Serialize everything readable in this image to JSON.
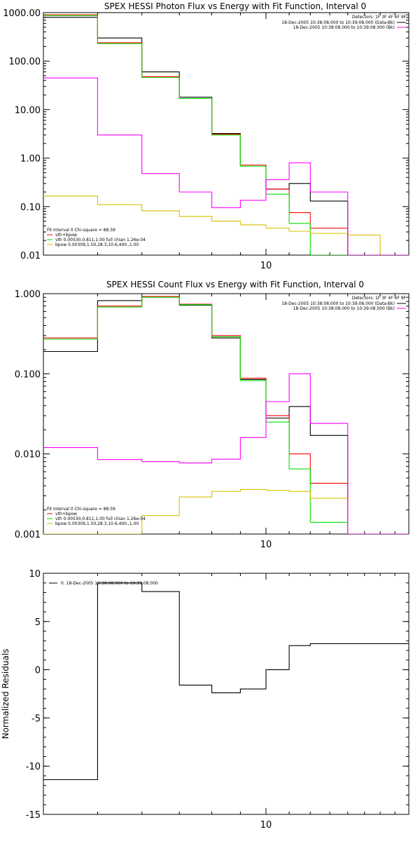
{
  "colors": {
    "data": "#000000",
    "total_fit": "#ff0000",
    "vth": "#00e000",
    "bpow": "#d8c000",
    "background": "#ff00ff"
  },
  "chart_data": [
    {
      "type": "line",
      "step": true,
      "title": "SPEX HESSI Photon Flux vs Energy with Fit Function, Interval 0",
      "xlabel": "",
      "ylabel": "",
      "x_scale": "log",
      "y_scale": "log",
      "xlim": [
        4,
        18
      ],
      "ylim": [
        0.01,
        1000
      ],
      "x_ticks": [
        {
          "value": 10,
          "label": "10"
        }
      ],
      "y_ticks": [
        {
          "value": 1000,
          "label": "1000.00"
        },
        {
          "value": 100,
          "label": "100.00"
        },
        {
          "value": 10,
          "label": "10.00"
        },
        {
          "value": 1,
          "label": "1.00"
        },
        {
          "value": 0.1,
          "label": "0.10"
        },
        {
          "value": 0.01,
          "label": "0.01"
        }
      ],
      "edges": [
        4,
        5,
        6,
        7,
        8,
        9,
        10,
        11,
        12,
        14,
        16,
        18
      ],
      "series": [
        {
          "color_key": "data",
          "values": [
            800,
            300,
            60,
            18,
            3.2,
            0.72,
            0.23,
            0.3,
            0.13,
            0.01,
            0.01
          ]
        },
        {
          "color_key": "total_fit",
          "values": [
            900,
            240,
            48,
            17,
            3.1,
            0.72,
            0.23,
            0.075,
            0.036,
            0.01,
            0.01
          ]
        },
        {
          "color_key": "vth",
          "values": [
            870,
            230,
            46,
            17,
            3.0,
            0.68,
            0.18,
            0.045,
            0.009,
            0.005,
            0.01
          ]
        },
        {
          "color_key": "bpow",
          "values": [
            0.165,
            0.11,
            0.082,
            0.063,
            0.05,
            0.042,
            0.036,
            0.031,
            0.028,
            0.026,
            0.01
          ]
        },
        {
          "color_key": "background",
          "values": [
            45,
            3.0,
            0.48,
            0.2,
            0.095,
            0.135,
            0.36,
            0.8,
            0.2,
            0.01,
            0.01
          ]
        }
      ],
      "legend_topright": {
        "detectors": "Detectors: 1F 3F 4F 6F 9F",
        "entries": [
          {
            "text": "18-Dec-2005 10:38:08.000 to 10:39:08.000 (Data-Bk)",
            "color_key": "data"
          },
          {
            "text": "18-Dec-2005 10:38:08.000 to 10:39:08.000 (Bk)",
            "color_key": "background"
          }
        ]
      },
      "legend_bottomleft": {
        "header": "Fit Interval 0   Chi-square = 88.59",
        "entries": [
          {
            "text": "vth+bpow",
            "color_key": "total_fit"
          },
          {
            "text": "vth 0.00530,0.811,1.00   full chian 1.26e-04",
            "color_key": "vth"
          },
          {
            "text": "bpow 0.00309,1.50,28.3,10.6,400.,1.00",
            "color_key": "bpow"
          }
        ]
      }
    },
    {
      "type": "line",
      "step": true,
      "title": "SPEX HESSI Count Flux vs Energy with Fit Function, Interval 0",
      "xlabel": "",
      "ylabel": "",
      "x_scale": "log",
      "y_scale": "log",
      "xlim": [
        4,
        18
      ],
      "ylim": [
        0.001,
        1.0
      ],
      "x_ticks": [
        {
          "value": 10,
          "label": "10"
        }
      ],
      "y_ticks": [
        {
          "value": 1.0,
          "label": "1.000"
        },
        {
          "value": 0.1,
          "label": "0.100"
        },
        {
          "value": 0.01,
          "label": "0.010"
        },
        {
          "value": 0.001,
          "label": "0.001"
        }
      ],
      "edges": [
        4,
        5,
        6,
        7,
        8,
        9,
        10,
        11,
        12,
        14,
        16,
        18
      ],
      "series": [
        {
          "color_key": "data",
          "values": [
            0.19,
            0.82,
            0.92,
            0.72,
            0.28,
            0.085,
            0.028,
            0.039,
            0.017,
            0.001,
            0.001
          ]
        },
        {
          "color_key": "total_fit",
          "values": [
            0.28,
            0.7,
            0.92,
            0.74,
            0.3,
            0.088,
            0.03,
            0.01,
            0.0043,
            0.001,
            0.001
          ]
        },
        {
          "color_key": "vth",
          "values": [
            0.27,
            0.68,
            0.9,
            0.73,
            0.29,
            0.082,
            0.025,
            0.0065,
            0.0014,
            0.001,
            0.001
          ]
        },
        {
          "color_key": "bpow",
          "values": [
            0.0008,
            0.0008,
            0.0017,
            0.0029,
            0.0034,
            0.0036,
            0.0035,
            0.0034,
            0.0028,
            0.001,
            0.001
          ]
        },
        {
          "color_key": "background",
          "values": [
            0.012,
            0.0085,
            0.008,
            0.0077,
            0.0086,
            0.016,
            0.045,
            0.1,
            0.024,
            0.001,
            0.001
          ]
        }
      ],
      "legend_topright": {
        "detectors": "Detectors: 1F 3F 4F 6F 9F",
        "entries": [
          {
            "text": "18-Dec-2005 10:38:08.000 to 10:39:08.000 (Data-Bk)",
            "color_key": "data"
          },
          {
            "text": "18-Dec-2005 10:38:08.000 to 10:39:08.000 (Bk)",
            "color_key": "background"
          }
        ]
      },
      "legend_bottomleft": {
        "header": "Fit Interval 0   Chi-square = 88.59",
        "entries": [
          {
            "text": "vth+bpow",
            "color_key": "total_fit"
          },
          {
            "text": "vth 0.00530,0.811,1.00   full chian 1.26e-04",
            "color_key": "vth"
          },
          {
            "text": "bpow 0.00309,1.50,28.3,10.6,400.,1.00",
            "color_key": "bpow"
          }
        ]
      }
    },
    {
      "type": "line",
      "step": true,
      "title": "",
      "xlabel": "",
      "ylabel": "Normalized Residuals",
      "x_scale": "log",
      "y_scale": "linear",
      "xlim": [
        4,
        18
      ],
      "ylim": [
        -15,
        10
      ],
      "x_ticks": [
        {
          "value": 10,
          "label": "10"
        }
      ],
      "y_ticks": [
        {
          "value": 10,
          "label": "10"
        },
        {
          "value": 5,
          "label": "5"
        },
        {
          "value": 0,
          "label": "0"
        },
        {
          "value": -5,
          "label": "-5"
        },
        {
          "value": -10,
          "label": "-10"
        },
        {
          "value": -15,
          "label": "-15"
        }
      ],
      "edges": [
        4,
        5,
        6,
        7,
        8,
        9,
        10,
        11,
        12,
        14,
        16,
        18
      ],
      "series": [
        {
          "color_key": "data",
          "values": [
            -11.4,
            9.0,
            8.1,
            -1.6,
            -2.4,
            -2.0,
            0.0,
            2.5,
            2.7,
            2.7,
            2.7
          ]
        }
      ],
      "legend_topright": null,
      "legend_bottomleft": null,
      "legend_topleft": {
        "entries": [
          {
            "text": "0. 18-Dec-2005 10:38:08.000 to 10:39:08.000",
            "color_key": "data"
          }
        ]
      }
    }
  ]
}
